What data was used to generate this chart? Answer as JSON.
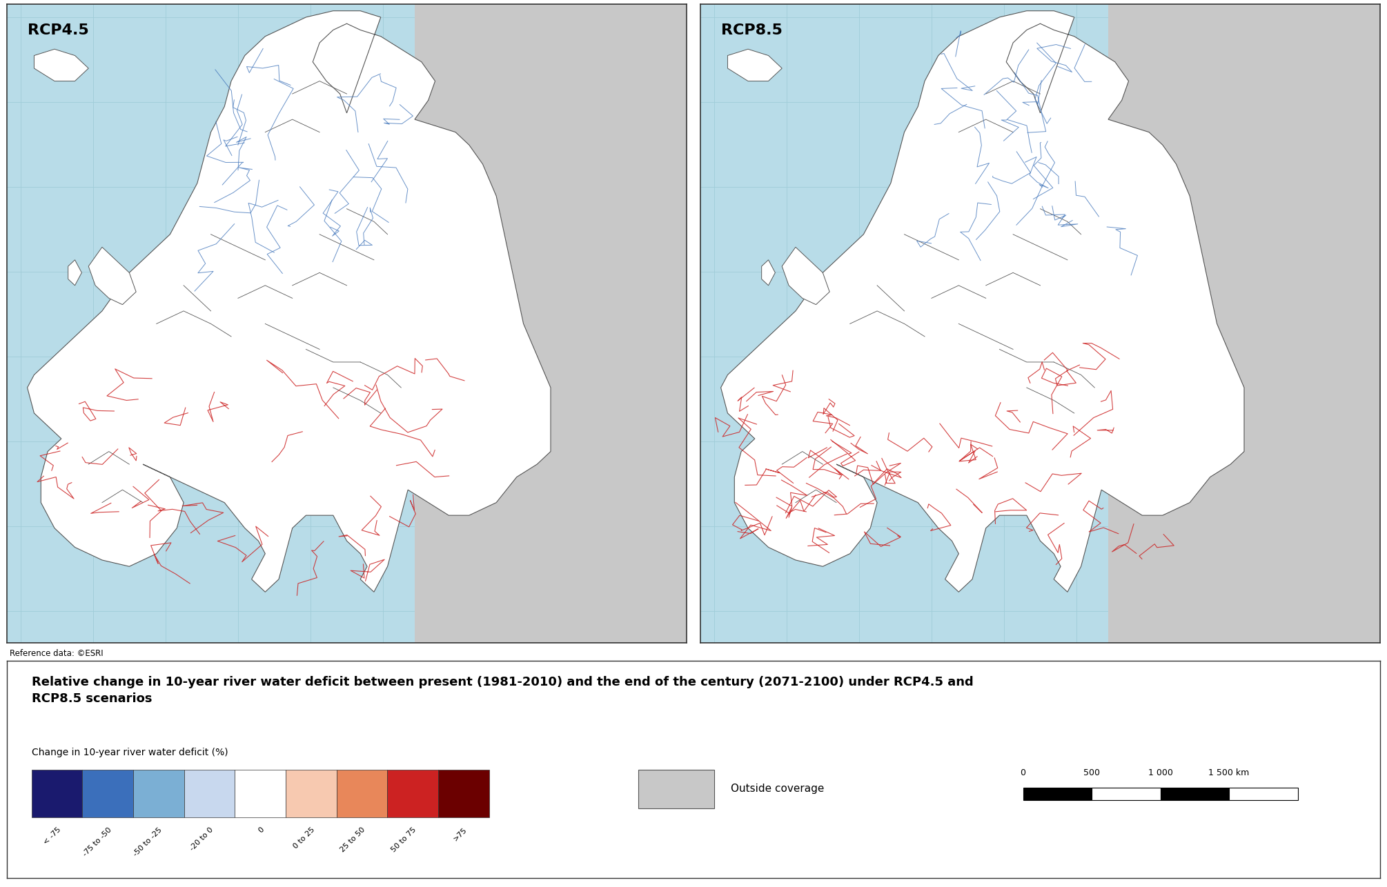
{
  "title_line1": "Relative change in 10-year river water deficit between present (1981-2010) and the end of the century (2071-2100) under RCP4.5 and",
  "title_line2": "RCP8.5 scenarios",
  "reference_text": "Reference data: ©ESRI",
  "map1_label": "RCP4.5",
  "map2_label": "RCP8.5",
  "legend_title": "Change in 10-year river water deficit (%)",
  "legend_colors": [
    "#1a1a6e",
    "#3b6fbb",
    "#7bafd4",
    "#c8d8ee",
    "#ffffff",
    "#f7c9b0",
    "#e8875a",
    "#cc2222",
    "#6b0000"
  ],
  "legend_labels": [
    "< -75",
    "-75 to -50",
    "-50 to -25",
    "-20 to 0",
    "0",
    "0 to 25",
    "25 to 50",
    "50 to 75",
    ">75"
  ],
  "outside_coverage_color": "#c8c8c8",
  "outside_coverage_label": "Outside coverage",
  "scalebar_values": [
    "0",
    "500",
    "1 000",
    "1 500 km"
  ],
  "map_bg_color": "#b8dce8",
  "land_color": "#ffffff",
  "grey_land_color": "#c8c8c8",
  "border_color": "#555555",
  "grid_color": "#a0ccd8",
  "fig_width": 20.1,
  "fig_height": 12.86,
  "title_fontsize": 13,
  "label_fontsize": 11,
  "map_title_fontsize": 16
}
